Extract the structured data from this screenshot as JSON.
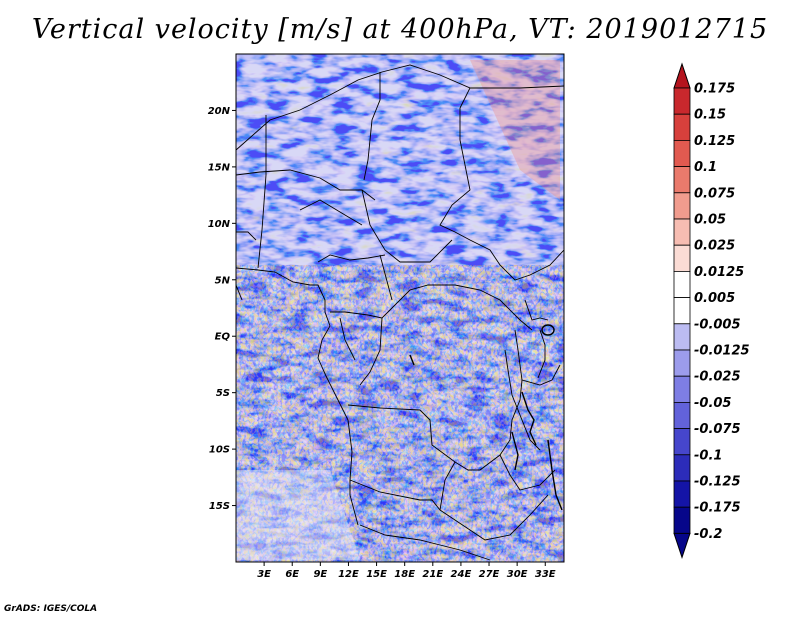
{
  "title": "Vertical velocity [m/s] at 400hPa, VT: 2019012715",
  "credit": "GrADS: IGES/COLA",
  "map": {
    "lon_range": [
      0,
      35
    ],
    "lat_range": [
      -20,
      25
    ],
    "lat_labels": [
      "20N",
      "15N",
      "10N",
      "5N",
      "EQ",
      "5S",
      "10S",
      "15S"
    ],
    "lon_labels": [
      "3E",
      "6E",
      "9E",
      "12E",
      "15E",
      "18E",
      "21E",
      "24E",
      "27E",
      "30E",
      "33E"
    ]
  },
  "colorbar": {
    "labels": [
      "0.175",
      "0.15",
      "0.125",
      "0.1",
      "0.075",
      "0.05",
      "0.025",
      "0.0125",
      "0.005",
      "-0.005",
      "-0.0125",
      "-0.025",
      "-0.05",
      "-0.075",
      "-0.1",
      "-0.125",
      "-0.175",
      "-0.2"
    ],
    "colors": [
      "#b4141e",
      "#c8282d",
      "#d7403c",
      "#e15a50",
      "#ea7a6c",
      "#f19c8e",
      "#f7bdb2",
      "#fbdcd5",
      "#ffffff",
      "#dcdcf8",
      "#bcbcf2",
      "#9c9cec",
      "#7e7ee4",
      "#6262da",
      "#4646cc",
      "#2c2cba",
      "#1414a6",
      "#06068a"
    ]
  },
  "colors": {
    "frame": "#000000",
    "border": "#000000"
  }
}
